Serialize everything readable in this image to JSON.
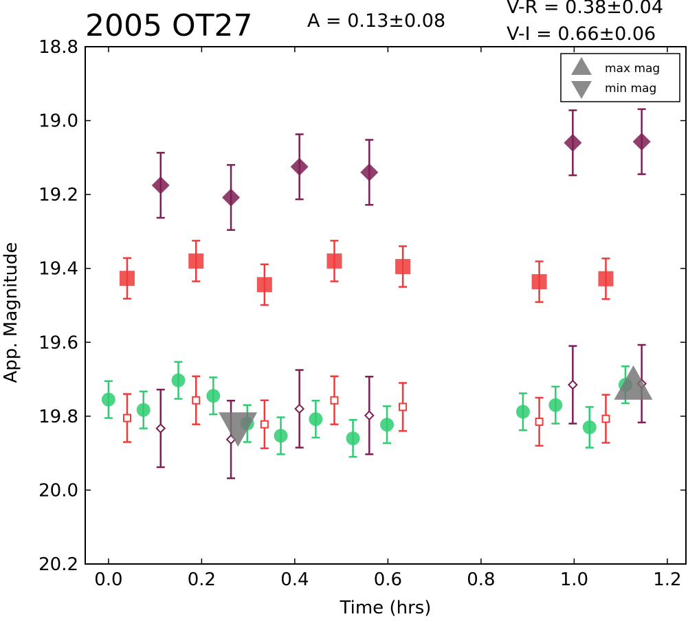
{
  "header": {
    "title": "2005 OT27",
    "amplitude": "A  = 0.13±0.08",
    "vr": "V-R = 0.38±0.04",
    "vi": "V-I  = 0.66±0.06"
  },
  "chart_data": {
    "type": "scatter",
    "xlabel": "Time (hrs)",
    "ylabel": "App. Magnitude",
    "xlim": [
      -0.05,
      1.24
    ],
    "ylim": [
      20.2,
      18.8
    ],
    "y_inverted": true,
    "x_ticks": [
      "0.0",
      "0.2",
      "0.4",
      "0.6",
      "0.8",
      "1.0",
      "1.2"
    ],
    "y_ticks": [
      "18.8",
      "19.0",
      "19.2",
      "19.4",
      "19.6",
      "19.8",
      "20.0",
      "20.2"
    ],
    "grid": false,
    "legend": {
      "placement": "top-right",
      "entries": [
        {
          "label": "max mag",
          "marker": "triangle-up"
        },
        {
          "label": "min mag",
          "marker": "triangle-down"
        }
      ]
    },
    "colors": {
      "green": "#2ecc71",
      "red": "#f03a3a",
      "purple": "#7d1d52",
      "marker_gray": "#777777"
    },
    "series": [
      {
        "marker": "circle",
        "filled": true,
        "color": "#2ecc71",
        "points": [
          {
            "x": 0.0,
            "y": 19.755,
            "err": 0.05
          },
          {
            "x": 0.075,
            "y": 19.783,
            "err": 0.05
          },
          {
            "x": 0.15,
            "y": 19.703,
            "err": 0.05
          },
          {
            "x": 0.225,
            "y": 19.745,
            "err": 0.05
          },
          {
            "x": 0.298,
            "y": 19.82,
            "err": 0.05
          },
          {
            "x": 0.37,
            "y": 19.853,
            "err": 0.05
          },
          {
            "x": 0.445,
            "y": 19.808,
            "err": 0.05
          },
          {
            "x": 0.525,
            "y": 19.86,
            "err": 0.05
          },
          {
            "x": 0.598,
            "y": 19.823,
            "err": 0.05
          },
          {
            "x": 0.89,
            "y": 19.788,
            "err": 0.05
          },
          {
            "x": 0.96,
            "y": 19.77,
            "err": 0.05
          },
          {
            "x": 1.033,
            "y": 19.83,
            "err": 0.055
          },
          {
            "x": 1.11,
            "y": 19.715,
            "err": 0.05
          }
        ]
      },
      {
        "marker": "square",
        "filled": false,
        "color": "#f03a3a",
        "points": [
          {
            "x": 0.04,
            "y": 19.805,
            "err": 0.065
          },
          {
            "x": 0.188,
            "y": 19.757,
            "err": 0.065
          },
          {
            "x": 0.335,
            "y": 19.822,
            "err": 0.065
          },
          {
            "x": 0.485,
            "y": 19.757,
            "err": 0.065
          },
          {
            "x": 0.632,
            "y": 19.775,
            "err": 0.065
          },
          {
            "x": 0.925,
            "y": 19.815,
            "err": 0.065
          },
          {
            "x": 1.068,
            "y": 19.807,
            "err": 0.065
          }
        ]
      },
      {
        "marker": "diamond",
        "filled": false,
        "color": "#7d1d52",
        "points": [
          {
            "x": 0.112,
            "y": 19.833,
            "err": 0.105
          },
          {
            "x": 0.263,
            "y": 19.863,
            "err": 0.105
          },
          {
            "x": 0.41,
            "y": 19.78,
            "err": 0.105
          },
          {
            "x": 0.56,
            "y": 19.798,
            "err": 0.105
          },
          {
            "x": 0.997,
            "y": 19.715,
            "err": 0.105
          },
          {
            "x": 1.145,
            "y": 19.712,
            "err": 0.105
          }
        ]
      },
      {
        "marker": "square",
        "filled": true,
        "color": "#f03a3a",
        "points": [
          {
            "x": 0.04,
            "y": 19.427,
            "err": 0.055
          },
          {
            "x": 0.188,
            "y": 19.38,
            "err": 0.055
          },
          {
            "x": 0.335,
            "y": 19.444,
            "err": 0.055
          },
          {
            "x": 0.485,
            "y": 19.38,
            "err": 0.055
          },
          {
            "x": 0.632,
            "y": 19.395,
            "err": 0.055
          },
          {
            "x": 0.925,
            "y": 19.436,
            "err": 0.055
          },
          {
            "x": 1.068,
            "y": 19.428,
            "err": 0.055
          }
        ]
      },
      {
        "marker": "diamond",
        "filled": true,
        "color": "#7d1d52",
        "points": [
          {
            "x": 0.112,
            "y": 19.175,
            "err": 0.088
          },
          {
            "x": 0.263,
            "y": 19.208,
            "err": 0.088
          },
          {
            "x": 0.41,
            "y": 19.125,
            "err": 0.088
          },
          {
            "x": 0.56,
            "y": 19.14,
            "err": 0.088
          },
          {
            "x": 0.997,
            "y": 19.06,
            "err": 0.088
          },
          {
            "x": 1.145,
            "y": 19.057,
            "err": 0.088
          }
        ]
      }
    ],
    "extrema": [
      {
        "type": "min",
        "x": 0.278,
        "y": 19.825
      },
      {
        "type": "max",
        "x": 1.127,
        "y": 19.72
      }
    ]
  }
}
